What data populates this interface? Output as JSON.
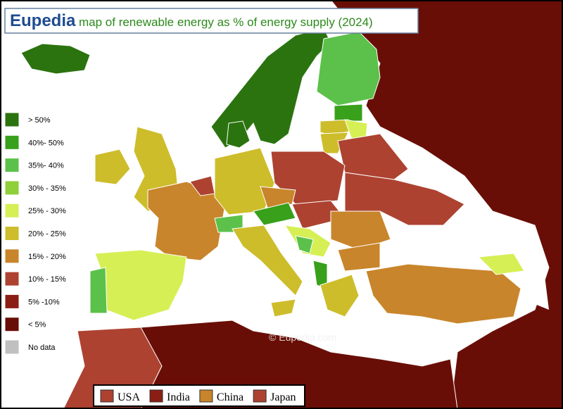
{
  "header": {
    "brand": "Eupedia",
    "title": "map of renewable energy as % of energy supply (2024)"
  },
  "legend": {
    "items": [
      {
        "label": "> 50%",
        "color": "#2b730f"
      },
      {
        "label": "40%- 50%",
        "color": "#38a01a"
      },
      {
        "label": "35%- 40%",
        "color": "#5cc14a"
      },
      {
        "label": "30% - 35%",
        "color": "#8fcf3a"
      },
      {
        "label": "25% - 30%",
        "color": "#d6ef55"
      },
      {
        "label": "20% - 25%",
        "color": "#cdbd2b"
      },
      {
        "label": "15% - 20%",
        "color": "#c8852b"
      },
      {
        "label": "10% - 15%",
        "color": "#ad4231"
      },
      {
        "label": "5% -10%",
        "color": "#8b1e14"
      },
      {
        "label": "< 5%",
        "color": "#690e06"
      },
      {
        "label": "No data",
        "color": "#c0c0c0"
      }
    ]
  },
  "reference": {
    "items": [
      {
        "label": "USA",
        "color": "#ad4231"
      },
      {
        "label": "India",
        "color": "#8b1e14"
      },
      {
        "label": "China",
        "color": "#c8852b"
      },
      {
        "label": "Japan",
        "color": "#ad4231"
      }
    ]
  },
  "watermark": "© Eupedia.com"
}
